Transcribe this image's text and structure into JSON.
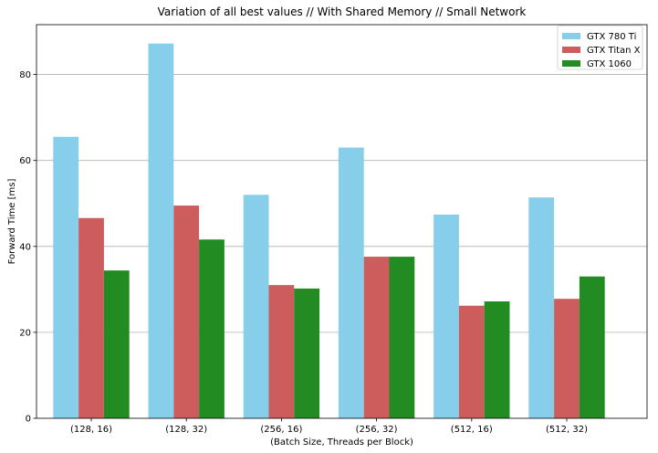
{
  "chart_data": {
    "type": "bar",
    "title": "Variation of all best values // With Shared Memory // Small Network",
    "xlabel": "(Batch Size, Threads per Block)",
    "ylabel": "Forward Time [ms]",
    "categories": [
      "(128, 16)",
      "(128, 32)",
      "(256, 16)",
      "(256, 32)",
      "(512, 16)",
      "(512, 32)"
    ],
    "series": [
      {
        "name": "GTX 780 Ti",
        "color": "#87ceeb",
        "values": [
          65.5,
          87.2,
          52.0,
          63.0,
          47.4,
          51.4
        ]
      },
      {
        "name": "GTX Titan X",
        "color": "#cd5c5c",
        "values": [
          46.6,
          49.5,
          31.0,
          37.6,
          26.2,
          27.8
        ]
      },
      {
        "name": "GTX 1060",
        "color": "#228b22",
        "values": [
          34.4,
          41.6,
          30.2,
          37.6,
          27.2,
          33.0
        ]
      }
    ],
    "ylim": [
      0,
      91.6
    ],
    "yticks": [
      0,
      20,
      40,
      60,
      80
    ],
    "grid": "y",
    "legend_position": "top-right"
  }
}
